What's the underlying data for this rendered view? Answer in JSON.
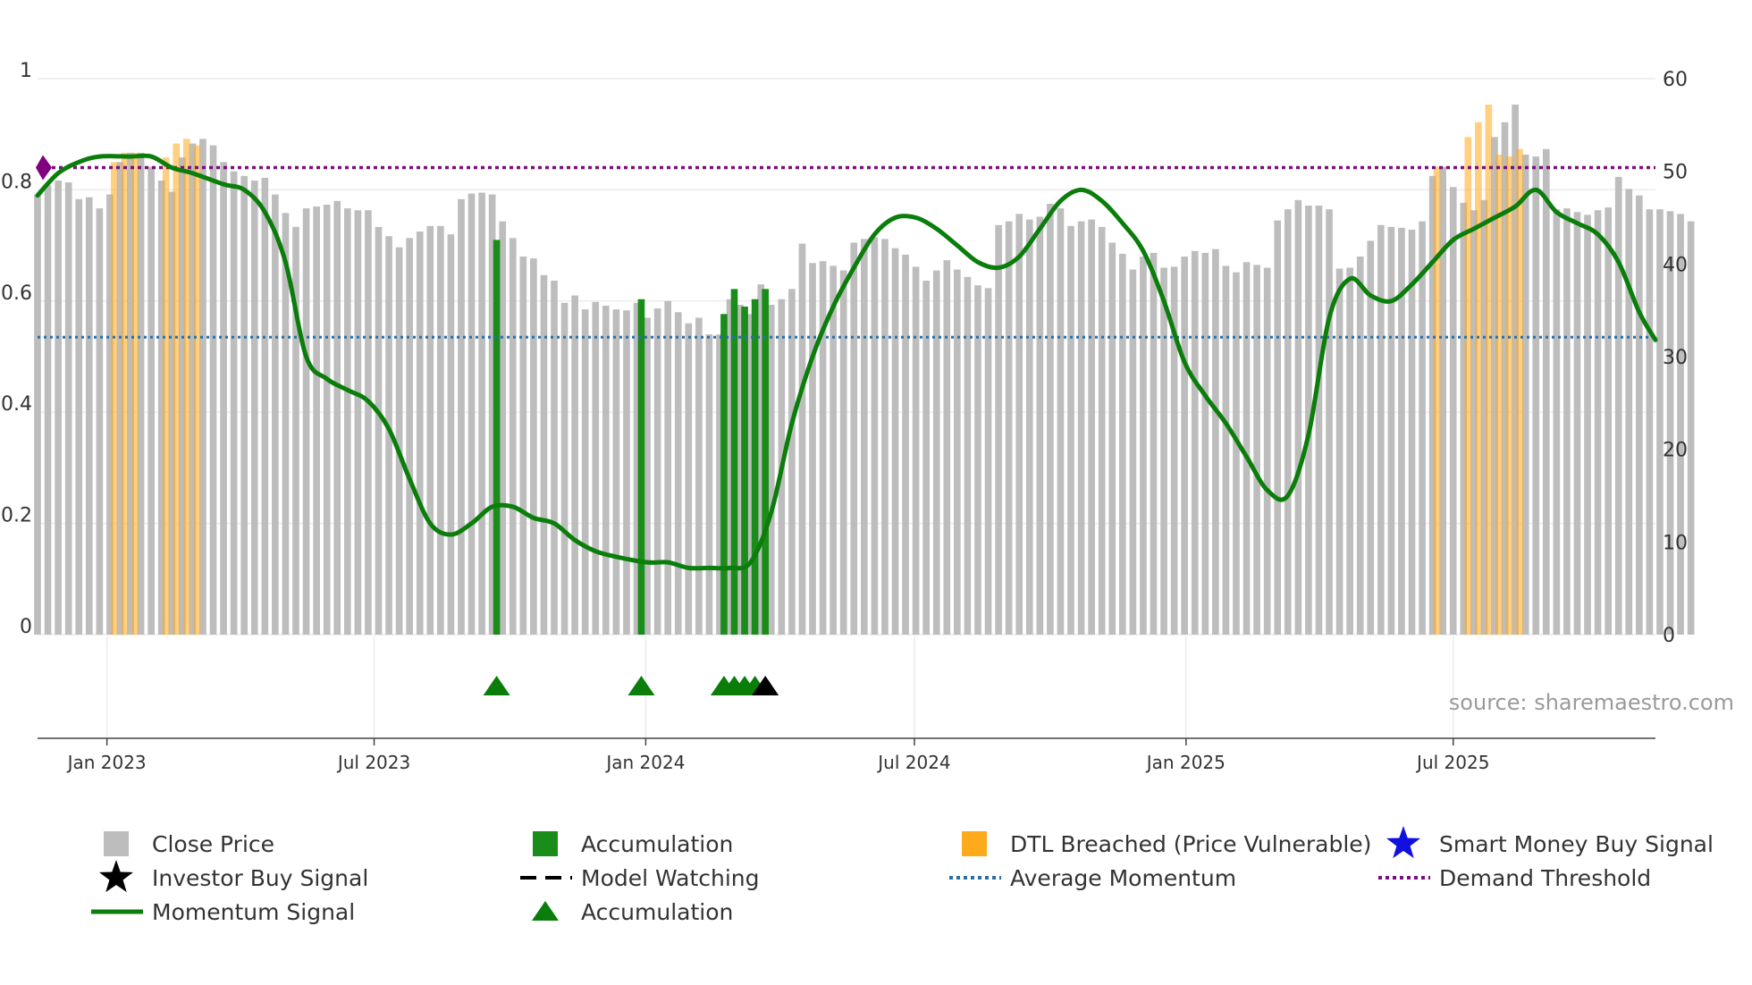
{
  "chart_data": {
    "type": "bar",
    "title": "",
    "source": "source: sharemaestro.com",
    "colors": {
      "close_price": "#bdbdbd",
      "accumulation": "#1a8c1a",
      "dtl_breached": "#ffaa1a",
      "momentum": "#0a7d0a",
      "average_momentum": "#2a6fa8",
      "demand_threshold": "#7a0f7a",
      "smart_money": "#1010e0",
      "investor": "#000000",
      "accumulation_marker": "#0a7d0a",
      "start_marker": "#800080"
    },
    "left_axis": {
      "range": [
        0,
        1
      ],
      "ticks": [
        "0",
        "0.2",
        "0.4",
        "0.6",
        "0.8",
        "1"
      ],
      "tick_values": [
        0,
        0.2,
        0.4,
        0.6,
        0.8,
        1
      ]
    },
    "right_axis": {
      "range": [
        0,
        60
      ],
      "ticks": [
        "0",
        "10",
        "20",
        "30",
        "40",
        "50",
        "60"
      ],
      "tick_values": [
        0,
        10,
        20,
        30,
        40,
        50,
        60
      ]
    },
    "x_axis": {
      "start": "2022-11-15",
      "end": "2025-11-15",
      "ticks": [
        {
          "date": "2023-01-01",
          "label": "Jan 2023"
        },
        {
          "date": "2023-07-01",
          "label": "Jul 2023"
        },
        {
          "date": "2024-01-01",
          "label": "Jan 2024"
        },
        {
          "date": "2024-07-01",
          "label": "Jul 2024"
        },
        {
          "date": "2025-01-01",
          "label": "Jan 2025"
        },
        {
          "date": "2025-07-01",
          "label": "Jul 2025"
        }
      ]
    },
    "close_price": {
      "interval_days": 7,
      "values": [
        47.5,
        48.5,
        49,
        48.8,
        47,
        47.2,
        46,
        47.5,
        51,
        52,
        52,
        50.5,
        49,
        47.8,
        51.5,
        53,
        53.5,
        52.8,
        51,
        50,
        49.5,
        49,
        49.3,
        47.5,
        45.5,
        44,
        46,
        46.2,
        46.4,
        46.8,
        46,
        45.8,
        45.8,
        44,
        43,
        41.8,
        42.8,
        43.5,
        44.1,
        44.1,
        43.2,
        47,
        47.6,
        47.7,
        47.5,
        44.6,
        42.8,
        40.8,
        40.6,
        38.8,
        38.2,
        35.8,
        36.6,
        35.1,
        35.9,
        35.5,
        35.1,
        35,
        35.8,
        34.2,
        35.2,
        36,
        34.8,
        33.6,
        34.2,
        32.4,
        32.4,
        36.2,
        35.6,
        34.6,
        37.8,
        35.6,
        36.2,
        37.3,
        42.2,
        40.1,
        40.3,
        39.8,
        39.3,
        42.3,
        42.7,
        42.9,
        42.7,
        41.7,
        41,
        39.7,
        38.2,
        39.3,
        40.4,
        39.4,
        38.6,
        37.7,
        37.4,
        44.2,
        44.6,
        45.4,
        44.8,
        45.1,
        46.5,
        46,
        44.1,
        44.6,
        44.8,
        44,
        42.3,
        41.1,
        39.4,
        40.8,
        41.2,
        39.6,
        39.7,
        40.8,
        41.4,
        41.2,
        41.6,
        39.8,
        39.1,
        40.2,
        39.9,
        39.6,
        44.7,
        45.9,
        46.9,
        46.3,
        46.3,
        45.9,
        39.5,
        39.6,
        40.8,
        42.5,
        44.2,
        44,
        43.9,
        43.7,
        44.6,
        49.5,
        50.5,
        48.3,
        46.6,
        45.8,
        46.9,
        53.7,
        55.3,
        57.2,
        51.8,
        51.6,
        52.4,
        45.9,
        46,
        45.6,
        45.3,
        45.8,
        46.1,
        49.4,
        48.1,
        47.4,
        45.9,
        45.9,
        45.7,
        45.4,
        44.6
      ]
    },
    "accumulation_bars": [
      {
        "date": "2023-09-22",
        "value": 42.6
      },
      {
        "date": "2023-12-29",
        "value": 36.2
      },
      {
        "date": "2024-02-23",
        "value": 34.6
      },
      {
        "date": "2024-03-01",
        "value": 37.3
      },
      {
        "date": "2024-03-08",
        "value": 35.4
      },
      {
        "date": "2024-03-15",
        "value": 36.2
      },
      {
        "date": "2024-03-22",
        "value": 37.3
      }
    ],
    "dtl_breached_bars": [
      {
        "date": "2023-01-06",
        "value": 51
      },
      {
        "date": "2023-01-13",
        "value": 52
      },
      {
        "date": "2023-01-20",
        "value": 52
      },
      {
        "date": "2023-02-10",
        "value": 51.5
      },
      {
        "date": "2023-02-17",
        "value": 53
      },
      {
        "date": "2023-02-24",
        "value": 53.5
      },
      {
        "date": "2023-03-03",
        "value": 52.8
      },
      {
        "date": "2025-06-20",
        "value": 50.5
      },
      {
        "date": "2025-07-11",
        "value": 53.7
      },
      {
        "date": "2025-07-18",
        "value": 55.3
      },
      {
        "date": "2025-07-25",
        "value": 57.2
      },
      {
        "date": "2025-08-01",
        "value": 51.8
      },
      {
        "date": "2025-08-08",
        "value": 51.6
      },
      {
        "date": "2025-08-15",
        "value": 52.4
      }
    ],
    "momentum": {
      "points": [
        [
          "2022-11-15",
          0.79
        ],
        [
          "2022-11-29",
          0.83
        ],
        [
          "2022-12-13",
          0.85
        ],
        [
          "2022-12-27",
          0.86
        ],
        [
          "2023-01-17",
          0.86
        ],
        [
          "2023-01-31",
          0.86
        ],
        [
          "2023-02-14",
          0.84
        ],
        [
          "2023-02-28",
          0.83
        ],
        [
          "2023-03-21",
          0.81
        ],
        [
          "2023-04-04",
          0.8
        ],
        [
          "2023-04-18",
          0.76
        ],
        [
          "2023-05-02",
          0.67
        ],
        [
          "2023-05-16",
          0.5
        ],
        [
          "2023-05-30",
          0.46
        ],
        [
          "2023-06-13",
          0.44
        ],
        [
          "2023-06-27",
          0.42
        ],
        [
          "2023-07-11",
          0.37
        ],
        [
          "2023-07-25",
          0.28
        ],
        [
          "2023-08-08",
          0.2
        ],
        [
          "2023-08-22",
          0.18
        ],
        [
          "2023-09-05",
          0.2
        ],
        [
          "2023-09-19",
          0.23
        ],
        [
          "2023-10-03",
          0.23
        ],
        [
          "2023-10-17",
          0.21
        ],
        [
          "2023-10-31",
          0.2
        ],
        [
          "2023-11-14",
          0.17
        ],
        [
          "2023-11-28",
          0.15
        ],
        [
          "2023-12-12",
          0.14
        ],
        [
          "2024-01-02",
          0.13
        ],
        [
          "2024-01-16",
          0.13
        ],
        [
          "2024-01-30",
          0.12
        ],
        [
          "2024-02-13",
          0.12
        ],
        [
          "2024-02-27",
          0.12
        ],
        [
          "2024-03-12",
          0.13
        ],
        [
          "2024-03-26",
          0.22
        ],
        [
          "2024-04-09",
          0.38
        ],
        [
          "2024-04-23",
          0.5
        ],
        [
          "2024-05-07",
          0.59
        ],
        [
          "2024-05-21",
          0.66
        ],
        [
          "2024-06-04",
          0.72
        ],
        [
          "2024-06-18",
          0.75
        ],
        [
          "2024-07-02",
          0.75
        ],
        [
          "2024-07-16",
          0.73
        ],
        [
          "2024-07-30",
          0.7
        ],
        [
          "2024-08-13",
          0.67
        ],
        [
          "2024-08-27",
          0.66
        ],
        [
          "2024-09-10",
          0.68
        ],
        [
          "2024-09-24",
          0.73
        ],
        [
          "2024-10-08",
          0.78
        ],
        [
          "2024-10-22",
          0.8
        ],
        [
          "2024-11-05",
          0.78
        ],
        [
          "2024-11-19",
          0.74
        ],
        [
          "2024-12-03",
          0.69
        ],
        [
          "2024-12-17",
          0.6
        ],
        [
          "2024-12-31",
          0.49
        ],
        [
          "2025-01-14",
          0.43
        ],
        [
          "2025-01-28",
          0.38
        ],
        [
          "2025-02-11",
          0.32
        ],
        [
          "2025-02-25",
          0.26
        ],
        [
          "2025-03-11",
          0.25
        ],
        [
          "2025-03-25",
          0.36
        ],
        [
          "2025-04-08",
          0.57
        ],
        [
          "2025-04-22",
          0.64
        ],
        [
          "2025-05-06",
          0.61
        ],
        [
          "2025-05-20",
          0.6
        ],
        [
          "2025-06-03",
          0.63
        ],
        [
          "2025-06-17",
          0.67
        ],
        [
          "2025-07-01",
          0.71
        ],
        [
          "2025-07-15",
          0.73
        ],
        [
          "2025-07-29",
          0.75
        ],
        [
          "2025-08-12",
          0.77
        ],
        [
          "2025-08-26",
          0.8
        ],
        [
          "2025-09-09",
          0.76
        ],
        [
          "2025-09-23",
          0.74
        ],
        [
          "2025-10-07",
          0.72
        ],
        [
          "2025-10-21",
          0.67
        ],
        [
          "2025-11-04",
          0.58
        ],
        [
          "2025-11-15",
          0.53
        ]
      ]
    },
    "average_momentum": 0.535,
    "demand_threshold": 0.84,
    "accumulation_markers": [
      "2023-09-22",
      "2023-12-29",
      "2024-02-23",
      "2024-03-01",
      "2024-03-08",
      "2024-03-15"
    ],
    "investor_markers": [
      "2024-03-22"
    ],
    "legend": {
      "close_price": "Close Price",
      "accumulation": "Accumulation",
      "dtl_breached": "DTL Breached (Price Vulnerable)",
      "smart_money": "Smart Money Buy Signal",
      "investor": "Investor Buy Signal",
      "model_watching": "Model Watching",
      "average_momentum": "Average Momentum",
      "demand_threshold": "Demand Threshold",
      "momentum": "Momentum Signal",
      "accumulation_marker": "Accumulation"
    }
  }
}
